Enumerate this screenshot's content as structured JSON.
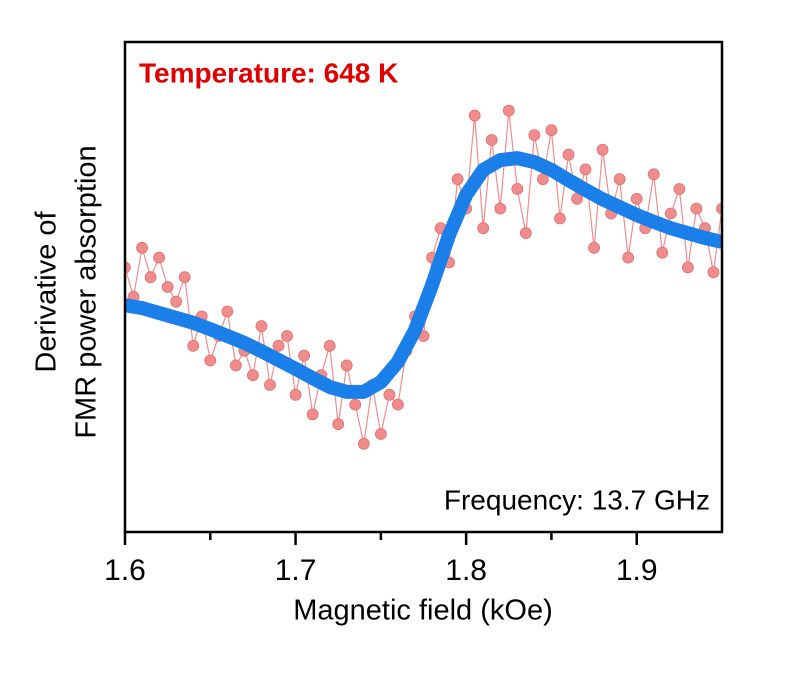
{
  "chart_data": {
    "type": "line",
    "xlabel": "Magnetic field (kOe)",
    "ylabel": [
      "Derivative of",
      "FMR power absorption"
    ],
    "annotations": [
      {
        "text": "Temperature: 648 K",
        "color": "#e00000",
        "bold": true
      },
      {
        "text": "Frequency: 13.7 GHz",
        "color": "#000000",
        "bold": false
      }
    ],
    "xlim": [
      1.6,
      1.95
    ],
    "xticks": [
      1.6,
      1.7,
      1.8,
      1.9
    ],
    "xminorticks": [
      1.65,
      1.75,
      1.85
    ],
    "ylim": [
      0,
      100
    ],
    "series": [
      {
        "mode": "markers-line",
        "color": "#f08c8c",
        "x": [
          1.6,
          1.605,
          1.61,
          1.615,
          1.62,
          1.625,
          1.63,
          1.635,
          1.64,
          1.645,
          1.65,
          1.655,
          1.66,
          1.665,
          1.67,
          1.675,
          1.68,
          1.685,
          1.69,
          1.695,
          1.7,
          1.705,
          1.71,
          1.715,
          1.72,
          1.725,
          1.73,
          1.735,
          1.74,
          1.745,
          1.75,
          1.755,
          1.76,
          1.765,
          1.77,
          1.775,
          1.78,
          1.785,
          1.79,
          1.795,
          1.8,
          1.805,
          1.81,
          1.815,
          1.82,
          1.825,
          1.83,
          1.835,
          1.84,
          1.845,
          1.85,
          1.855,
          1.86,
          1.865,
          1.87,
          1.875,
          1.88,
          1.885,
          1.89,
          1.895,
          1.9,
          1.905,
          1.91,
          1.915,
          1.92,
          1.925,
          1.93,
          1.935,
          1.94,
          1.945,
          1.95
        ],
        "values": [
          54,
          48,
          58,
          52,
          56,
          50,
          47,
          52,
          38,
          44,
          35,
          40,
          45,
          34,
          37,
          32,
          42,
          30,
          38,
          40,
          28,
          36,
          24,
          32,
          38,
          22,
          34,
          26,
          18,
          30,
          20,
          28,
          26,
          37,
          44,
          40,
          56,
          62,
          55,
          72,
          66,
          85,
          62,
          80,
          66,
          86,
          70,
          61,
          81,
          72,
          82,
          64,
          77,
          68,
          74,
          58,
          78,
          65,
          72,
          56,
          68,
          62,
          73,
          57,
          65,
          70,
          54,
          66,
          62,
          53,
          66
        ]
      },
      {
        "mode": "line",
        "color": "#1a7fe8",
        "x": [
          1.6,
          1.61,
          1.62,
          1.63,
          1.64,
          1.65,
          1.66,
          1.67,
          1.68,
          1.69,
          1.7,
          1.71,
          1.72,
          1.73,
          1.74,
          1.75,
          1.76,
          1.77,
          1.78,
          1.79,
          1.8,
          1.81,
          1.82,
          1.83,
          1.84,
          1.85,
          1.86,
          1.87,
          1.88,
          1.89,
          1.9,
          1.91,
          1.92,
          1.93,
          1.94,
          1.95
        ],
        "values": [
          46.3,
          45.7,
          44.7,
          43.7,
          42.7,
          41.4,
          40.0,
          38.6,
          36.9,
          35.1,
          33.3,
          31.4,
          29.6,
          28.6,
          28.6,
          30.6,
          34.7,
          41.2,
          50.4,
          60.6,
          68.8,
          73.9,
          75.9,
          76.3,
          75.5,
          73.9,
          71.8,
          69.8,
          67.9,
          66.3,
          64.7,
          63.3,
          62.0,
          61.0,
          60.0,
          59.2
        ]
      }
    ]
  }
}
